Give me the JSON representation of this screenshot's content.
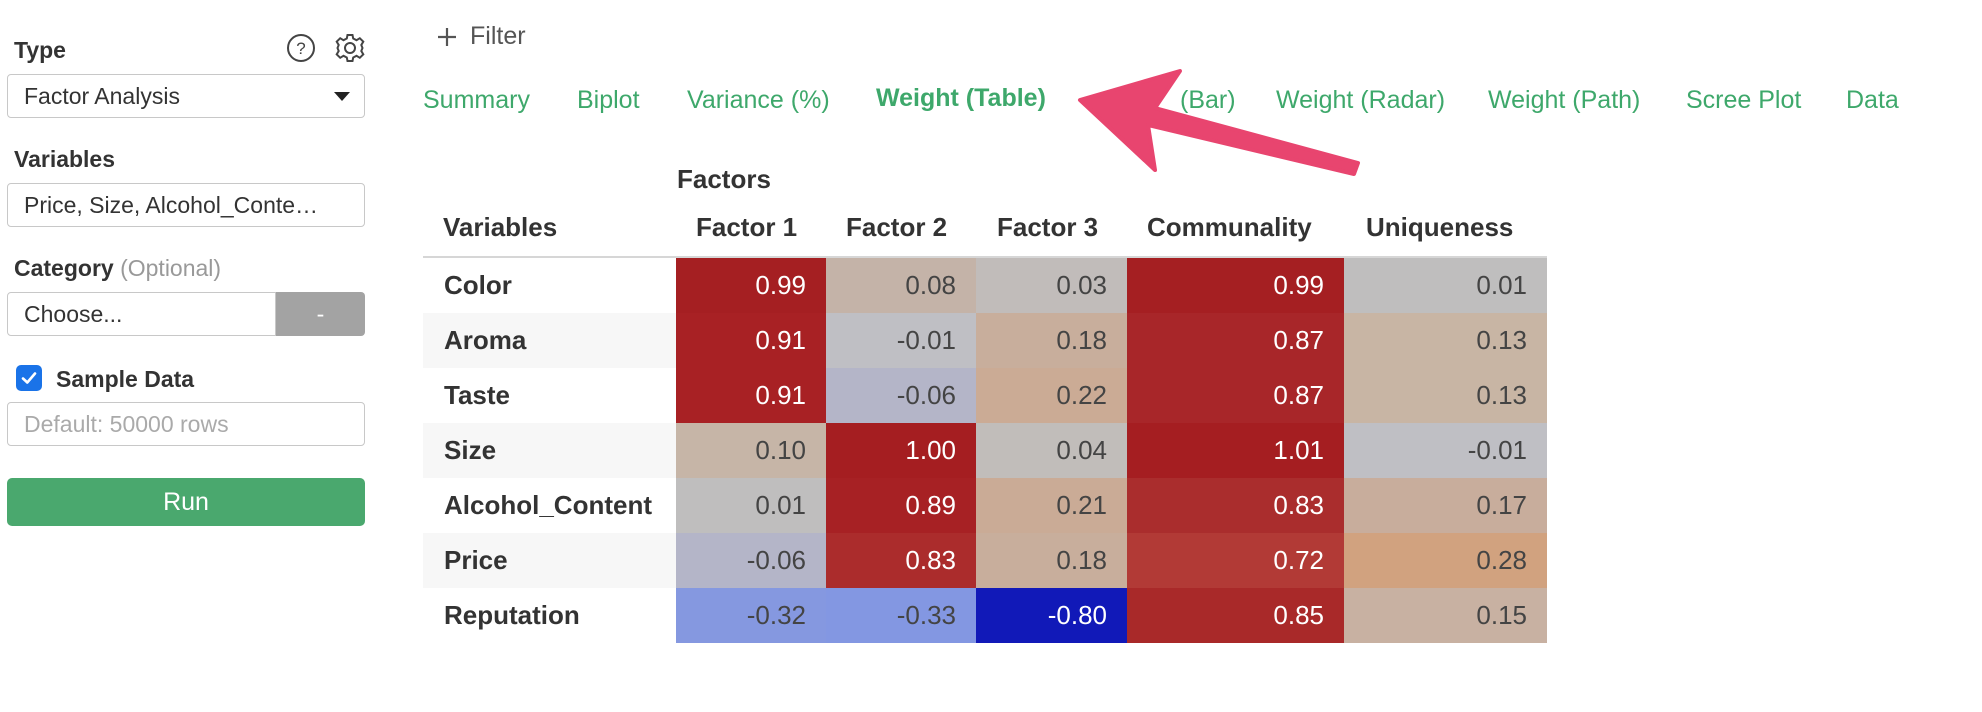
{
  "sidebar": {
    "type_label": "Type",
    "type_value": "Factor Analysis",
    "variables_label": "Variables",
    "variables_value": "Price, Size, Alcohol_Conte…",
    "category_label": "Category",
    "category_optional": "(Optional)",
    "category_value": "Choose...",
    "category_button": "-",
    "sample_label": "Sample Data",
    "sample_checked": true,
    "sample_placeholder": "Default: 50000 rows",
    "run_label": "Run"
  },
  "filter_label": "Filter",
  "tabs": [
    {
      "label": "Summary",
      "active": false
    },
    {
      "label": "Biplot",
      "active": false
    },
    {
      "label": "Variance (%)",
      "active": false
    },
    {
      "label": "Weight (Table)",
      "active": true
    },
    {
      "label": "(Bar)",
      "active": false
    },
    {
      "label": "Weight (Radar)",
      "active": false
    },
    {
      "label": "Weight (Path)",
      "active": false
    },
    {
      "label": "Scree Plot",
      "active": false
    },
    {
      "label": "Data",
      "active": false
    }
  ],
  "colors": {
    "accent_green": "#3ea86b",
    "run_green": "#4aa86e",
    "annotation_arrow": "#e8456f",
    "checkbox_blue": "#1a73e8"
  },
  "table": {
    "group_header": "Factors",
    "columns": [
      "Variables",
      "Factor 1",
      "Factor 2",
      "Factor 3",
      "Communality",
      "Uniqueness"
    ],
    "rows": [
      {
        "name": "Color",
        "values": [
          "0.99",
          "0.08",
          "0.03",
          "0.99",
          "0.01"
        ],
        "colors": [
          "#a51f22",
          "#c4b3a8",
          "#c1bcba",
          "#a51f22",
          "#bfbebe"
        ],
        "text": [
          "#fff",
          "#444",
          "#444",
          "#fff",
          "#444"
        ]
      },
      {
        "name": "Aroma",
        "values": [
          "0.91",
          "-0.01",
          "0.18",
          "0.87",
          "0.13"
        ],
        "colors": [
          "#a82124",
          "#bfbfc4",
          "#c8ae9c",
          "#a82629",
          "#c8b5a4"
        ],
        "text": [
          "#fff",
          "#444",
          "#444",
          "#fff",
          "#444"
        ]
      },
      {
        "name": "Taste",
        "values": [
          "0.91",
          "-0.06",
          "0.22",
          "0.87",
          "0.13"
        ],
        "colors": [
          "#a82124",
          "#b4b5c8",
          "#cbab95",
          "#a82629",
          "#c8b5a4"
        ],
        "text": [
          "#fff",
          "#444",
          "#444",
          "#fff",
          "#444"
        ]
      },
      {
        "name": "Size",
        "values": [
          "0.10",
          "1.00",
          "0.04",
          "1.01",
          "-0.01"
        ],
        "colors": [
          "#c6b5a7",
          "#a51e21",
          "#c1bdba",
          "#a51e21",
          "#bfbfc4"
        ],
        "text": [
          "#444",
          "#fff",
          "#444",
          "#fff",
          "#444"
        ]
      },
      {
        "name": "Alcohol_Content",
        "values": [
          "0.01",
          "0.89",
          "0.21",
          "0.83",
          "0.17"
        ],
        "colors": [
          "#bfbebe",
          "#a72124",
          "#caab96",
          "#aa2d2d",
          "#c8ad9c"
        ],
        "text": [
          "#444",
          "#fff",
          "#444",
          "#fff",
          "#444"
        ]
      },
      {
        "name": "Price",
        "values": [
          "-0.06",
          "0.83",
          "0.18",
          "0.72",
          "0.28"
        ],
        "colors": [
          "#b4b5c8",
          "#ab2c2c",
          "#c8ae9c",
          "#b23a36",
          "#d1a27f"
        ],
        "text": [
          "#444",
          "#fff",
          "#444",
          "#fff",
          "#444"
        ]
      },
      {
        "name": "Reputation",
        "values": [
          "-0.32",
          "-0.33",
          "-0.80",
          "0.85",
          "0.15"
        ],
        "colors": [
          "#8598e0",
          "#8397e2",
          "#1119b8",
          "#a92929",
          "#c8b1a2"
        ],
        "text": [
          "#444",
          "#444",
          "#fff",
          "#fff",
          "#444"
        ]
      }
    ]
  }
}
